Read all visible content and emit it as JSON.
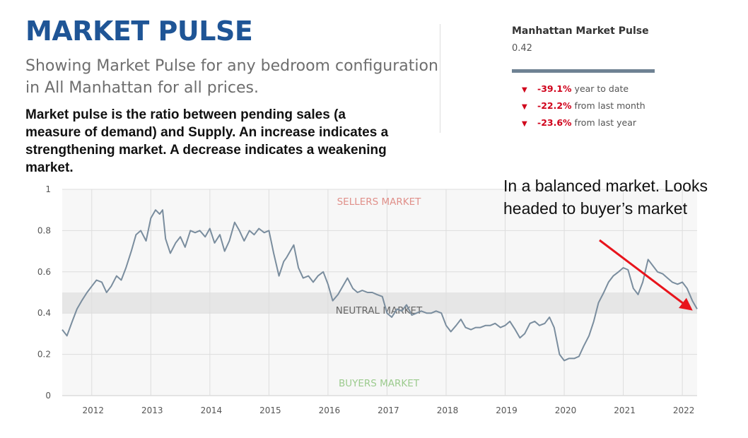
{
  "header": {
    "title": "MARKET PULSE",
    "subtitle": "Showing Market Pulse for any bedroom configuration in All Manhattan for all prices.",
    "description": "Market pulse is the ratio between pending sales (a measure of demand) and Supply. An increase indicates a strengthening market. A decrease indicates a weakening market."
  },
  "summary": {
    "name": "Manhattan Market Pulse",
    "value": "0.42",
    "stats": [
      {
        "pct": "-39.1%",
        "label": "year to date"
      },
      {
        "pct": "-22.2%",
        "label": "from last month"
      },
      {
        "pct": "-23.6%",
        "label": "from last year"
      }
    ]
  },
  "annotation": {
    "text": "In a balanced market. Looks headed to buyer’s market"
  },
  "colors": {
    "title": "#1f5596",
    "line": "#7a8d9e",
    "neutral_band": "#e6e6e6",
    "sellers_label": "#e0908a",
    "buyers_label": "#9ccb8e",
    "neutral_label": "#666666",
    "arrow": "#e8141c",
    "decline": "#d0021b"
  },
  "chart_data": {
    "type": "line",
    "title": "",
    "xlabel": "",
    "ylabel": "",
    "ylim": [
      0,
      1
    ],
    "xlim": [
      2011.5,
      2022.25
    ],
    "yticks": [
      "0",
      "0.2",
      "0.4",
      "0.6",
      "0.8",
      "1"
    ],
    "xticks": [
      "2012",
      "2013",
      "2014",
      "2015",
      "2016",
      "2017",
      "2018",
      "2019",
      "2020",
      "2021",
      "2022"
    ],
    "grid": true,
    "neutral_band": [
      0.4,
      0.5
    ],
    "zone_labels": {
      "sellers": "SELLERS MARKET",
      "neutral": "NEUTRAL MARKET",
      "buyers": "BUYERS MARKET"
    },
    "series": [
      {
        "x": [
          2011.5,
          2011.58,
          2011.67,
          2011.75,
          2011.83,
          2011.92,
          2012.0,
          2012.08,
          2012.17,
          2012.25,
          2012.33,
          2012.42,
          2012.5,
          2012.58,
          2012.67,
          2012.75,
          2012.83,
          2012.92,
          2013.0,
          2013.08,
          2013.15,
          2013.2,
          2013.25,
          2013.33,
          2013.42,
          2013.5,
          2013.58,
          2013.67,
          2013.75,
          2013.83,
          2013.92,
          2014.0,
          2014.08,
          2014.17,
          2014.25,
          2014.33,
          2014.42,
          2014.5,
          2014.58,
          2014.67,
          2014.75,
          2014.83,
          2014.92,
          2015.0,
          2015.08,
          2015.17,
          2015.25,
          2015.3,
          2015.42,
          2015.5,
          2015.58,
          2015.67,
          2015.75,
          2015.83,
          2015.92,
          2016.0,
          2016.08,
          2016.17,
          2016.25,
          2016.33,
          2016.42,
          2016.5,
          2016.58,
          2016.67,
          2016.75,
          2016.83,
          2016.92,
          2017.0,
          2017.08,
          2017.17,
          2017.25,
          2017.33,
          2017.42,
          2017.5,
          2017.58,
          2017.67,
          2017.75,
          2017.83,
          2017.92,
          2018.0,
          2018.08,
          2018.17,
          2018.25,
          2018.33,
          2018.42,
          2018.5,
          2018.58,
          2018.67,
          2018.75,
          2018.83,
          2018.92,
          2019.0,
          2019.08,
          2019.17,
          2019.25,
          2019.33,
          2019.42,
          2019.5,
          2019.58,
          2019.67,
          2019.75,
          2019.83,
          2019.92,
          2020.0,
          2020.08,
          2020.17,
          2020.25,
          2020.33,
          2020.42,
          2020.5,
          2020.58,
          2020.67,
          2020.75,
          2020.83,
          2020.92,
          2021.0,
          2021.08,
          2021.17,
          2021.25,
          2021.33,
          2021.42,
          2021.5,
          2021.58,
          2021.67,
          2021.75,
          2021.83,
          2021.92,
          2022.0,
          2022.08,
          2022.17,
          2022.25
        ],
        "y": [
          0.32,
          0.29,
          0.36,
          0.42,
          0.46,
          0.5,
          0.53,
          0.56,
          0.55,
          0.5,
          0.53,
          0.58,
          0.56,
          0.62,
          0.7,
          0.78,
          0.8,
          0.75,
          0.86,
          0.9,
          0.88,
          0.9,
          0.76,
          0.69,
          0.74,
          0.77,
          0.72,
          0.8,
          0.79,
          0.8,
          0.77,
          0.81,
          0.74,
          0.78,
          0.7,
          0.75,
          0.84,
          0.8,
          0.75,
          0.8,
          0.78,
          0.81,
          0.79,
          0.8,
          0.69,
          0.58,
          0.65,
          0.67,
          0.73,
          0.62,
          0.57,
          0.58,
          0.55,
          0.58,
          0.6,
          0.54,
          0.46,
          0.49,
          0.53,
          0.57,
          0.52,
          0.5,
          0.51,
          0.5,
          0.5,
          0.49,
          0.48,
          0.4,
          0.38,
          0.42,
          0.41,
          0.44,
          0.39,
          0.4,
          0.41,
          0.4,
          0.4,
          0.41,
          0.4,
          0.34,
          0.31,
          0.34,
          0.37,
          0.33,
          0.32,
          0.33,
          0.33,
          0.34,
          0.34,
          0.35,
          0.33,
          0.34,
          0.36,
          0.32,
          0.28,
          0.3,
          0.35,
          0.36,
          0.34,
          0.35,
          0.38,
          0.33,
          0.2,
          0.17,
          0.18,
          0.18,
          0.19,
          0.24,
          0.29,
          0.36,
          0.45,
          0.5,
          0.55,
          0.58,
          0.6,
          0.62,
          0.61,
          0.52,
          0.49,
          0.55,
          0.66,
          0.63,
          0.6,
          0.59,
          0.57,
          0.55,
          0.54,
          0.55,
          0.52,
          0.46,
          0.42
        ]
      }
    ]
  }
}
